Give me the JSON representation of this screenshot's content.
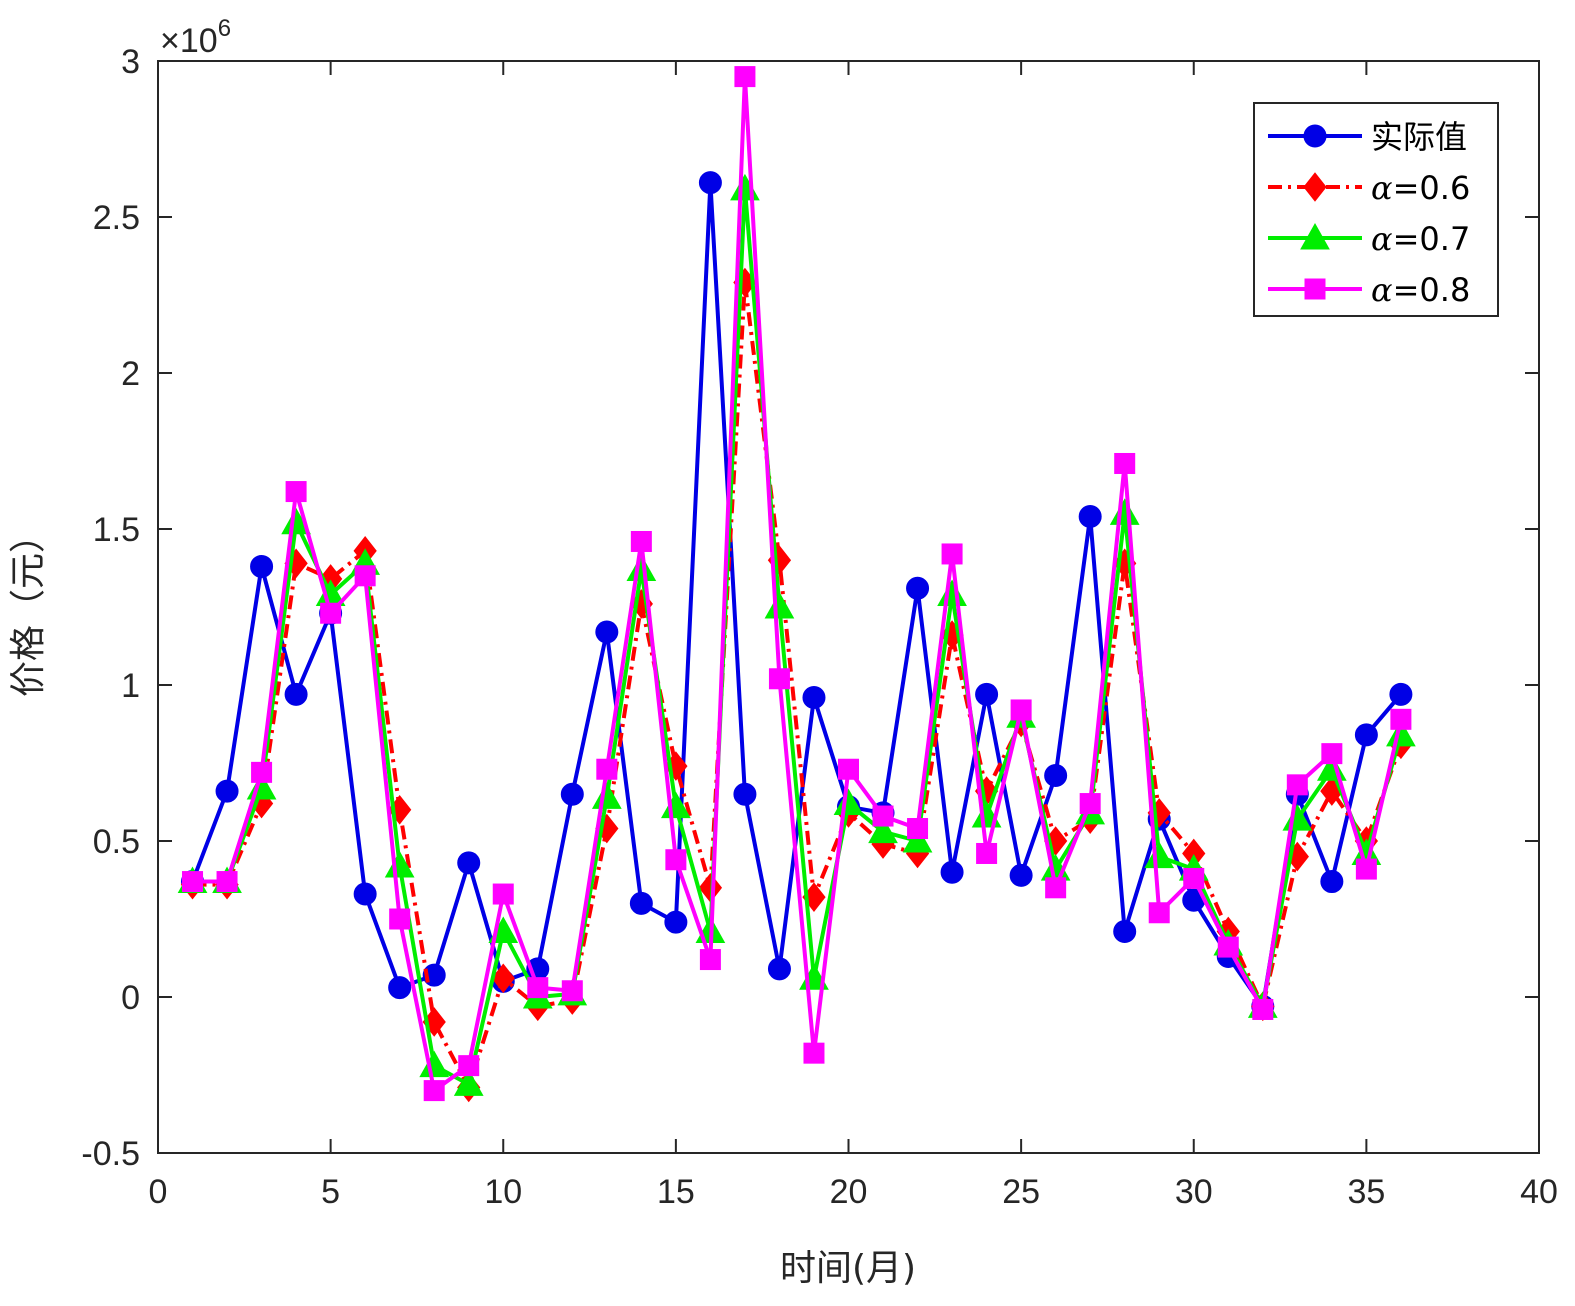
{
  "chart_data": {
    "type": "line",
    "title": "",
    "xlabel": "时间(月)",
    "ylabel": "价格（元）",
    "exponent_label": "×10",
    "exponent_power": "6",
    "xlim": [
      0,
      40
    ],
    "ylim": [
      -0.5,
      3
    ],
    "xticks": [
      0,
      5,
      10,
      15,
      20,
      25,
      30,
      35,
      40
    ],
    "xtick_labels": [
      "0",
      "5",
      "10",
      "15",
      "20",
      "25",
      "30",
      "35",
      "40"
    ],
    "yticks": [
      -0.5,
      0,
      0.5,
      1,
      1.5,
      2,
      2.5,
      3
    ],
    "ytick_labels": [
      "-0.5",
      "0",
      "0.5",
      "1",
      "1.5",
      "2",
      "2.5",
      "3"
    ],
    "legend_position": "top-right",
    "x": [
      1,
      2,
      3,
      4,
      5,
      6,
      7,
      8,
      9,
      10,
      11,
      12,
      13,
      14,
      15,
      16,
      17,
      18,
      19,
      20,
      21,
      22,
      23,
      24,
      25,
      26,
      27,
      28,
      29,
      30,
      31,
      32,
      33,
      34,
      35,
      36
    ],
    "series": [
      {
        "name": "实际值",
        "color": "#0000e6",
        "marker": "circle",
        "dash": "solid",
        "values": [
          0.37,
          0.66,
          1.38,
          0.97,
          1.23,
          0.33,
          0.03,
          0.07,
          0.43,
          0.05,
          0.09,
          0.65,
          1.17,
          0.3,
          0.24,
          2.61,
          0.65,
          0.09,
          0.96,
          0.61,
          0.59,
          1.31,
          0.4,
          0.97,
          0.39,
          0.71,
          1.54,
          0.21,
          0.57,
          0.31,
          0.13,
          -0.03,
          0.65,
          0.37,
          0.84,
          0.97
        ]
      },
      {
        "name": "=0.6",
        "greek": "α",
        "color": "#ff0000",
        "marker": "diamond",
        "dash": "dashdot",
        "values": [
          0.36,
          0.36,
          0.62,
          1.39,
          1.34,
          1.43,
          0.6,
          -0.08,
          -0.29,
          0.06,
          -0.03,
          -0.01,
          0.54,
          1.26,
          0.74,
          0.35,
          2.29,
          1.4,
          0.32,
          0.59,
          0.49,
          0.46,
          1.16,
          0.66,
          0.88,
          0.5,
          0.57,
          1.39,
          0.59,
          0.46,
          0.21,
          -0.03,
          0.45,
          0.66,
          0.5,
          0.81
        ]
      },
      {
        "name": "=0.7",
        "greek": "α",
        "color": "#00ee00",
        "marker": "triangle",
        "dash": "solid",
        "values": [
          0.37,
          0.37,
          0.67,
          1.52,
          1.29,
          1.39,
          0.42,
          -0.22,
          -0.28,
          0.21,
          0.0,
          0.01,
          0.64,
          1.37,
          0.61,
          0.21,
          2.59,
          1.25,
          0.06,
          0.62,
          0.53,
          0.5,
          1.29,
          0.58,
          0.9,
          0.41,
          0.59,
          1.55,
          0.45,
          0.41,
          0.17,
          -0.03,
          0.57,
          0.73,
          0.46,
          0.84
        ]
      },
      {
        "name": "=0.8",
        "greek": "α",
        "color": "#ff00ff",
        "marker": "square",
        "dash": "solid",
        "values": [
          0.37,
          0.37,
          0.72,
          1.62,
          1.23,
          1.35,
          0.25,
          -0.3,
          -0.22,
          0.33,
          0.03,
          0.02,
          0.73,
          1.46,
          0.44,
          0.12,
          2.95,
          1.02,
          -0.18,
          0.73,
          0.58,
          0.54,
          1.42,
          0.46,
          0.92,
          0.35,
          0.62,
          1.71,
          0.27,
          0.38,
          0.16,
          -0.04,
          0.68,
          0.78,
          0.41,
          0.89
        ]
      }
    ]
  }
}
